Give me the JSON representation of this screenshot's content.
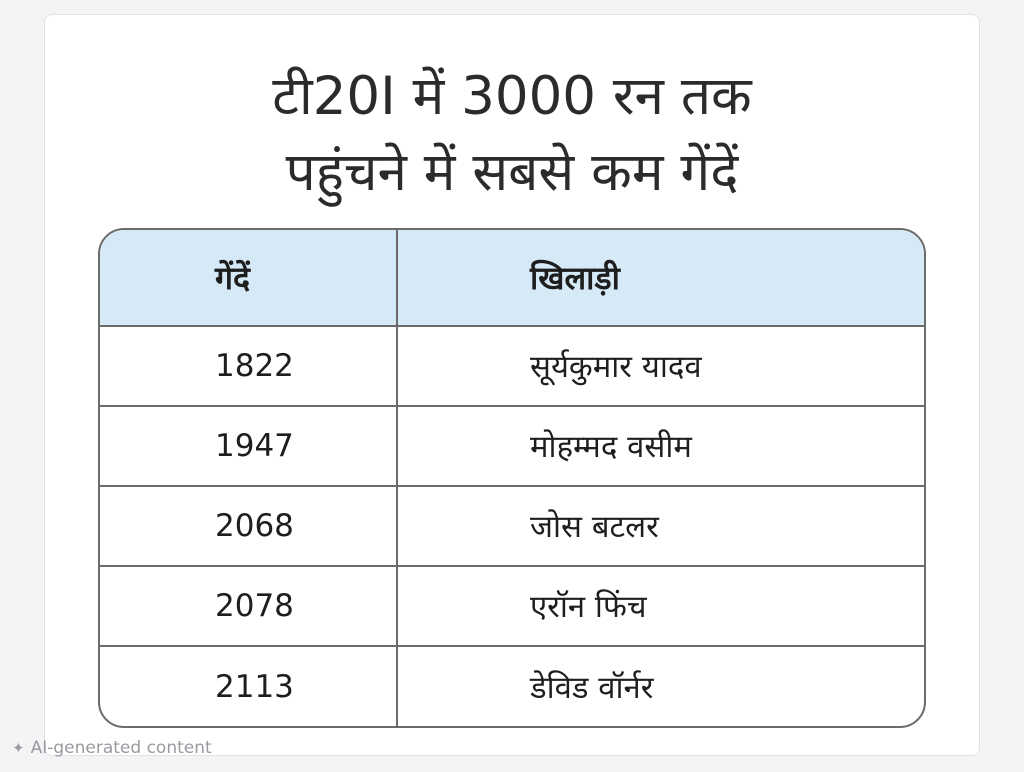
{
  "title": {
    "line1": "टी20I में 3000 रन तक",
    "line2": "पहुंचने में सबसे कम गेंदें"
  },
  "table": {
    "headers": [
      "गेंदें",
      "खिलाड़ी"
    ],
    "rows": [
      [
        "1822",
        "सूर्यकुमार यादव"
      ],
      [
        "1947",
        "मोहम्मद वसीम"
      ],
      [
        "2068",
        "जोस बटलर"
      ],
      [
        "2078",
        "एरॉन फिंच"
      ],
      [
        "2113",
        "डेविड वॉर्नर"
      ]
    ]
  },
  "footer": {
    "ai_label": "AI-generated content",
    "icon": "sparkle-icon"
  },
  "colors": {
    "header_bg": "#d6e9f7",
    "border": "#6b6b6b",
    "text": "#1e1e1e"
  }
}
